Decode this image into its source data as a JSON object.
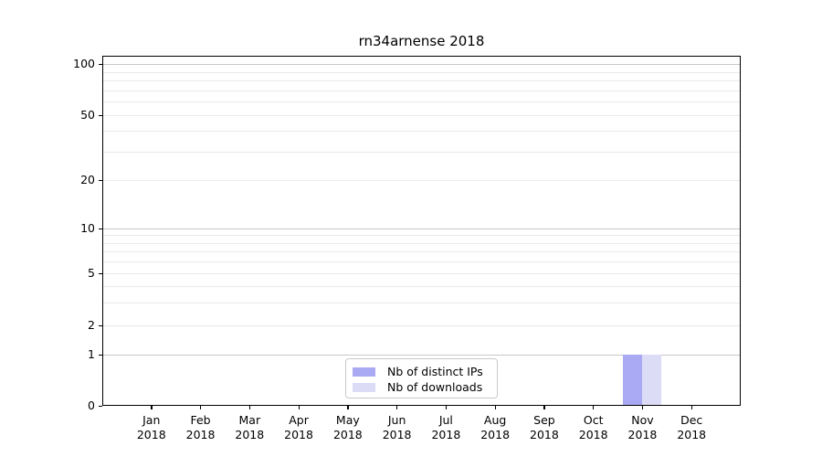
{
  "chart_data": {
    "type": "bar",
    "title": "rn34arnense 2018",
    "x_axis": {
      "months": [
        "Jan",
        "Feb",
        "Mar",
        "Apr",
        "May",
        "Jun",
        "Jul",
        "Aug",
        "Sep",
        "Oct",
        "Nov",
        "Dec"
      ],
      "year": "2018"
    },
    "y_axis": {
      "scale": "symlog",
      "tick_values": [
        0,
        1,
        2,
        5,
        10,
        20,
        50,
        100
      ],
      "major_gridline_values": [
        1,
        10,
        100
      ],
      "minor_gridline_values": [
        2,
        3,
        4,
        5,
        6,
        7,
        8,
        9,
        20,
        30,
        40,
        50,
        60,
        70,
        80,
        90
      ],
      "ylim": [
        0,
        112
      ]
    },
    "series": [
      {
        "name": "Nb of distinct IPs",
        "color": "#a9a9f4",
        "values": [
          0,
          0,
          0,
          0,
          0,
          0,
          0,
          0,
          0,
          0,
          1,
          0
        ]
      },
      {
        "name": "Nb of downloads",
        "color": "#dcdcf6",
        "values": [
          0,
          0,
          0,
          0,
          0,
          0,
          0,
          0,
          0,
          0,
          1,
          0
        ]
      }
    ],
    "legend": {
      "position": "inside-bottom-center",
      "entries": [
        "Nb of distinct IPs",
        "Nb of downloads"
      ]
    },
    "grid": "horizontal",
    "colors": {
      "major_gridline": "#c8c8c8",
      "minor_gridline": "#eaeaea",
      "axis": "#000000",
      "background": "#ffffff"
    }
  }
}
